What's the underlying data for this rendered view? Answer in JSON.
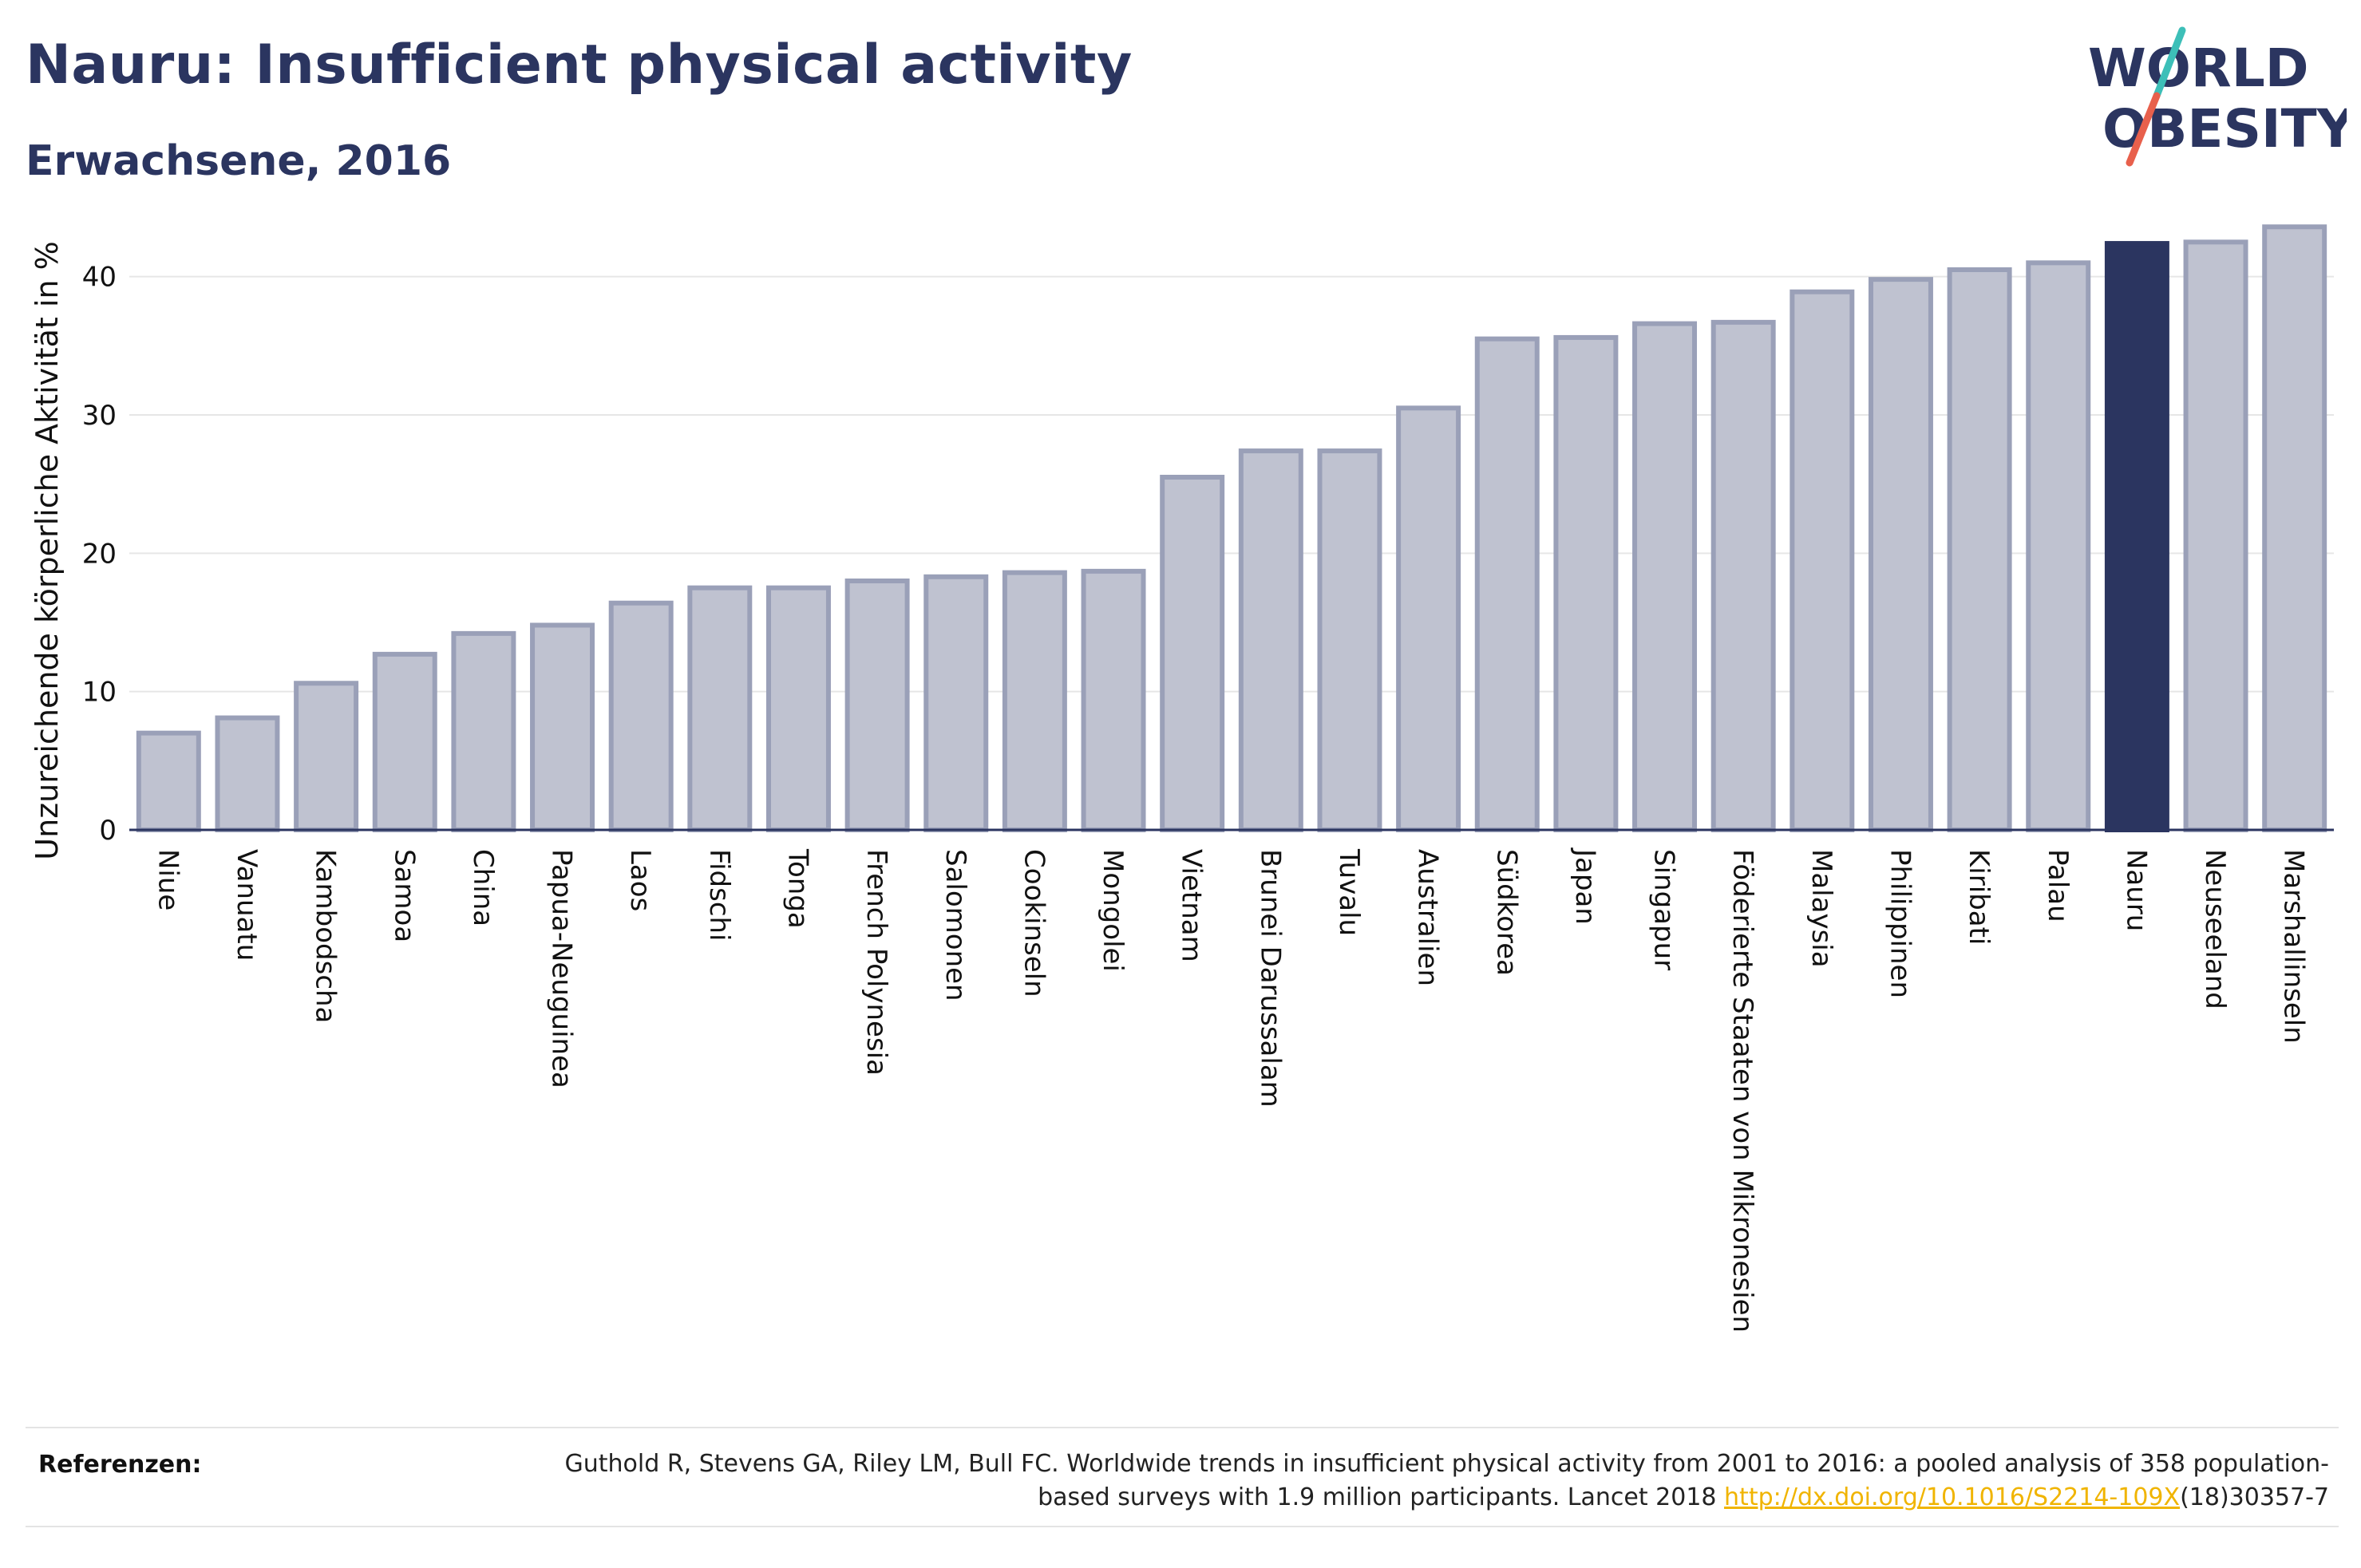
{
  "header": {
    "title": "Nauru: Insufficient physical activity",
    "subtitle": "Erwachsene, 2016"
  },
  "logo": {
    "line1": "WORLD",
    "line2": "OBESITY",
    "text_color": "#2b3560",
    "slash_top_color": "#3dbfb8",
    "slash_bottom_color": "#e8604c"
  },
  "colors": {
    "bar_fill": "#bfc2d0",
    "bar_stroke": "#9aa0b8",
    "highlight_fill": "#2b3560",
    "axis": "#2b3560",
    "grid": "#e6e6e6",
    "text": "#111111"
  },
  "chart_data": {
    "type": "bar",
    "title": "Nauru: Insufficient physical activity",
    "subtitle": "Erwachsene, 2016",
    "xlabel": "",
    "ylabel": "Unzureichende körperliche Aktivität in %",
    "ylim": [
      0,
      45
    ],
    "yticks": [
      0,
      10,
      20,
      30,
      40
    ],
    "grid": true,
    "highlight": "Nauru",
    "categories": [
      "Niue",
      "Vanuatu",
      "Kambodscha",
      "Samoa",
      "China",
      "Papua-Neuguinea",
      "Laos",
      "Fidschi",
      "Tonga",
      "French Polynesia",
      "Salomonen",
      "Cookinseln",
      "Mongolei",
      "Vietnam",
      "Brunei Darussalam",
      "Tuvalu",
      "Australien",
      "Südkorea",
      "Japan",
      "Singapur",
      "Föderierte Staaten von Mikronesien",
      "Malaysia",
      "Philippinen",
      "Kiribati",
      "Palau",
      "Nauru",
      "Neuseeland",
      "Marshallinseln"
    ],
    "values": [
      7.0,
      8.1,
      10.6,
      12.7,
      14.2,
      14.8,
      16.4,
      17.5,
      17.5,
      18.0,
      18.3,
      18.6,
      18.7,
      25.5,
      27.4,
      27.4,
      30.5,
      35.5,
      35.6,
      36.6,
      36.7,
      38.9,
      39.8,
      40.5,
      41.0,
      42.4,
      42.5,
      43.6
    ]
  },
  "references": {
    "label": "Referenzen:",
    "text_before_link": "Guthold R, Stevens GA, Riley LM, Bull FC. Worldwide trends in insufficient physical activity from 2001 to 2016: a pooled analysis of 358 population-based surveys with 1.9 million participants. Lancet 2018 ",
    "link_text": "http://dx.doi.org/10.1016/S2214-109X",
    "text_after_link": "(18)30357-7"
  }
}
